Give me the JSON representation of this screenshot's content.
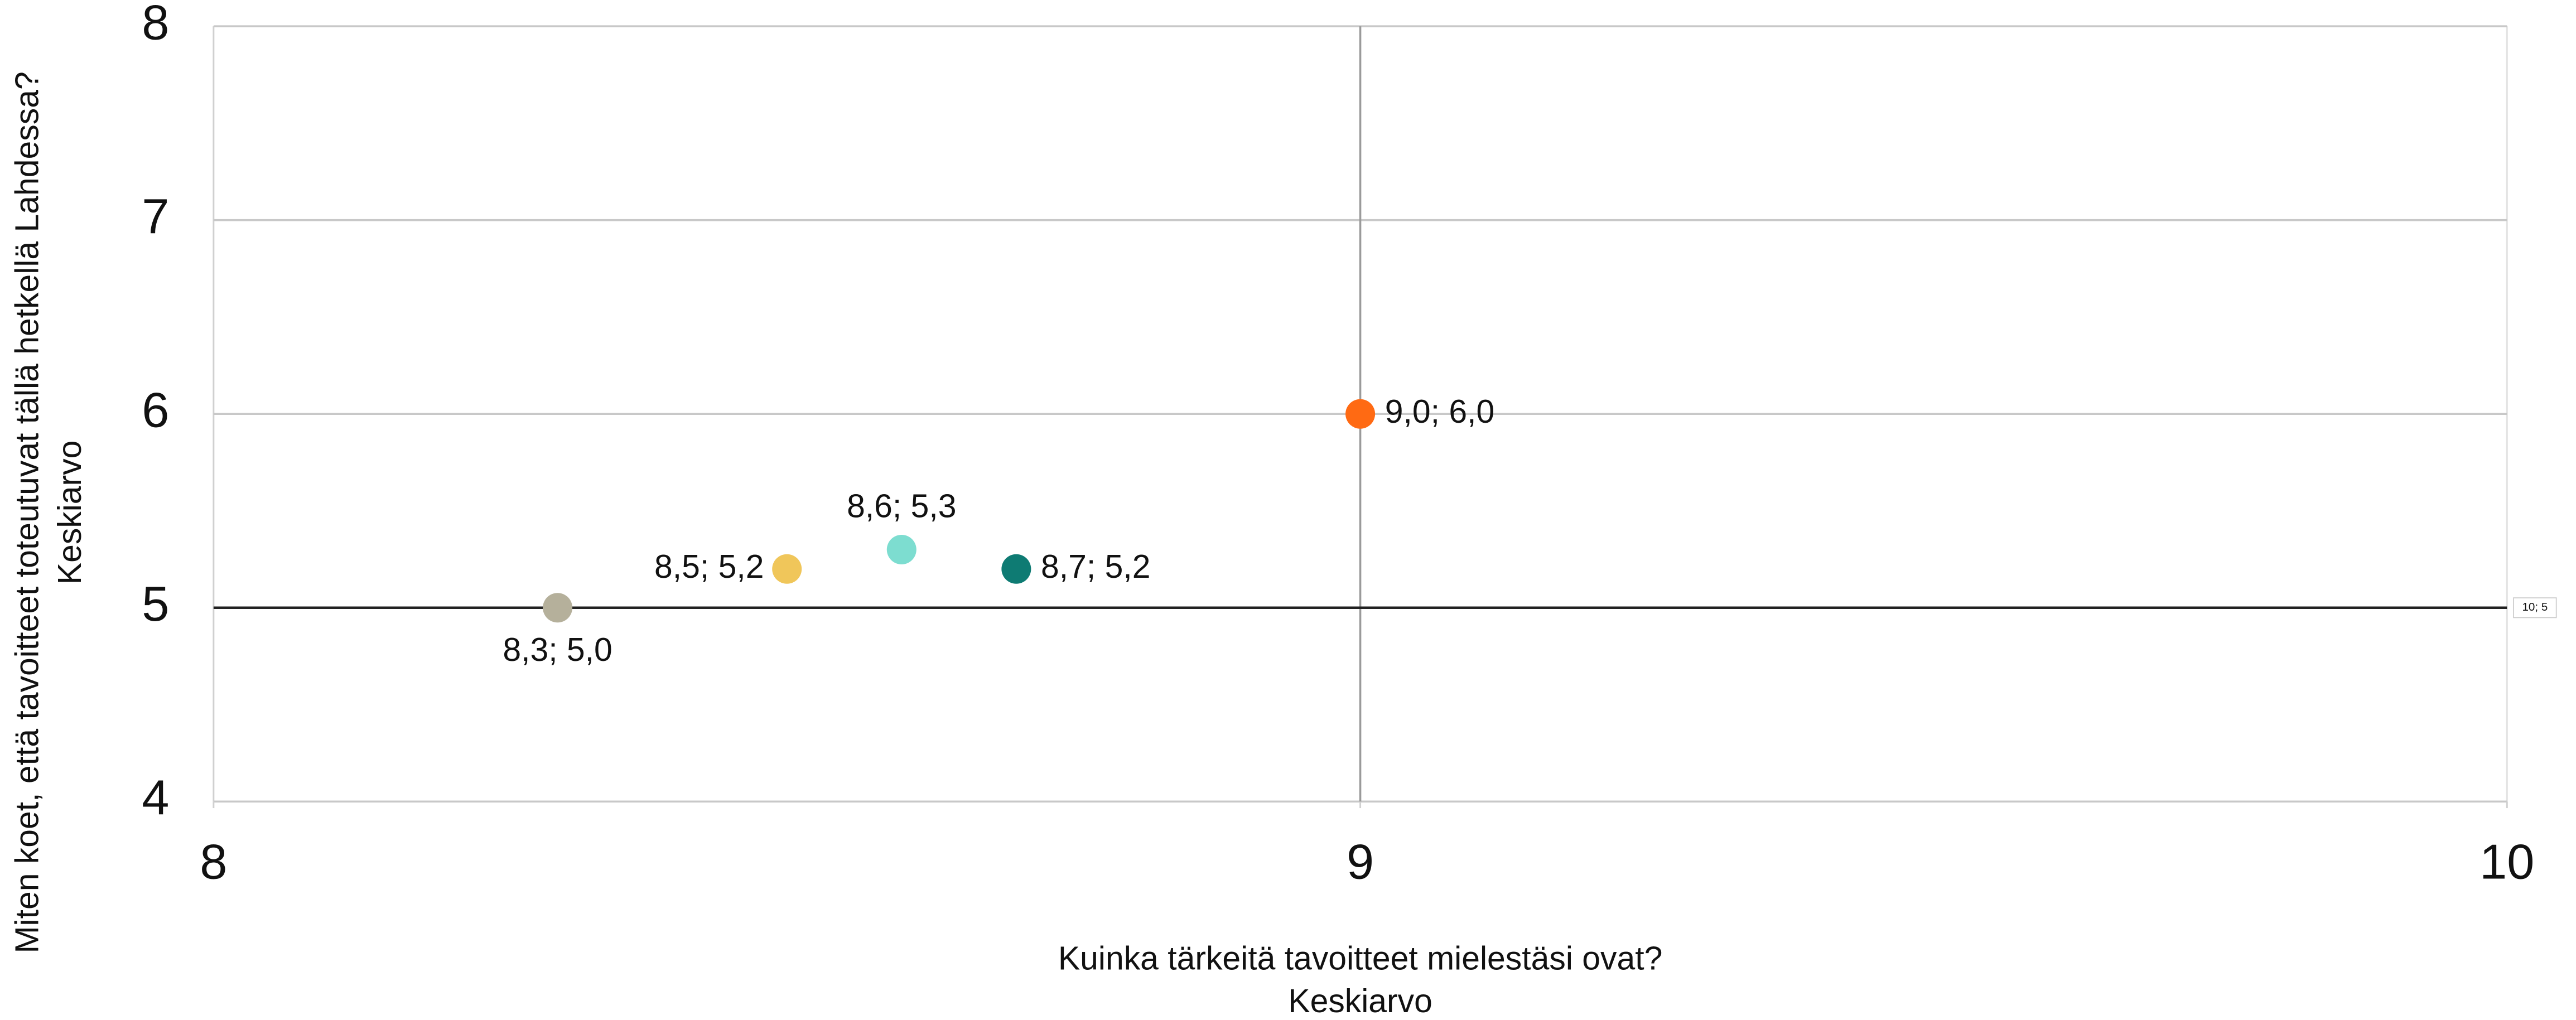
{
  "chart_data": {
    "type": "scatter",
    "x": [
      8.3,
      8.5,
      8.6,
      8.7,
      9.0
    ],
    "y": [
      5.0,
      5.2,
      5.3,
      5.2,
      6.0
    ],
    "colors": [
      "#b5b09b",
      "#f0c65a",
      "#7dddd0",
      "#0e7b73",
      "#ff6a13"
    ],
    "value_labels": [
      "8,3; 5,0",
      "8,5; 5,2",
      "8,6; 5,3",
      "8,7; 5,2",
      "9,0; 6,0"
    ],
    "xlim": [
      8,
      10
    ],
    "xticks": [
      8,
      9,
      10
    ],
    "ylim": [
      4,
      8
    ],
    "yticks": [
      4,
      5,
      6,
      7,
      8
    ],
    "xlabel": [
      "Kuinka tärkeitä tavoitteet mielestäsi ovat?",
      "Keskiarvo"
    ],
    "ylabel": [
      "Miten koet, että tavoitteet toteutuvat tällä hetkellä Lahdessa?",
      "Keskiarvo"
    ],
    "reference_lines": {
      "x": 9,
      "y": 5
    },
    "annotation": "10; 5",
    "grid": true
  }
}
